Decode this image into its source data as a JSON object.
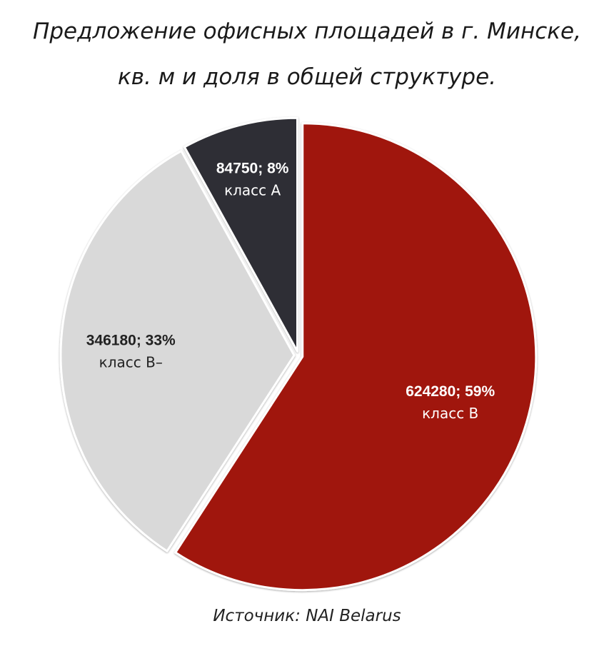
{
  "chart_data": {
    "type": "pie",
    "title": "Предложение офисных площадей в г. Минске,",
    "subtitle": "кв. м и доля в общей структуре.",
    "source": "Источник: NAI Belarus",
    "slices": [
      {
        "id": "class-b",
        "name": "класс B",
        "value": 624280,
        "label": "624280; 59%",
        "color": "#a0150c",
        "text_color": "#ffffff"
      },
      {
        "id": "class-b-minus",
        "name": "класс B–",
        "value": 346180,
        "label": "346180; 33%",
        "color": "#d9d9d9",
        "text_color": "#222222"
      },
      {
        "id": "class-a",
        "name": "класс A",
        "value": 84750,
        "label": "84750; 8%",
        "color": "#2f2f34",
        "text_color": "#ffffff"
      }
    ]
  }
}
